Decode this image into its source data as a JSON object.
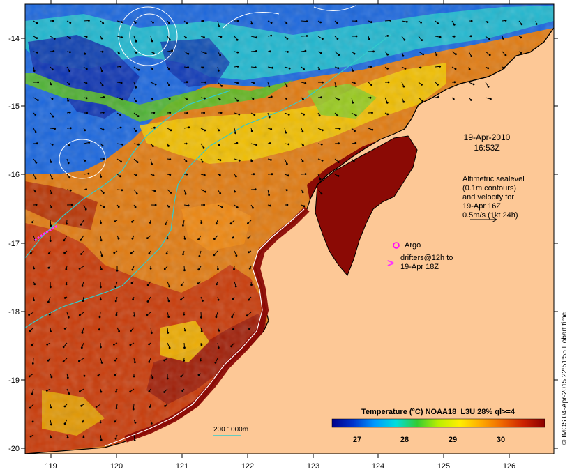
{
  "map": {
    "date_label": "19-Apr-2010",
    "time_label": "16:53Z",
    "altimetry_note": [
      "Altimetric sealevel",
      "(0.1m contours)",
      "and velocity for",
      "19-Apr 16Z",
      "0.5m/s (1kt 24h)"
    ],
    "argo_label": "Argo",
    "drifters_label": [
      "drifters@12h to",
      "19-Apr 18Z"
    ],
    "isobath_label": "200  1000m",
    "credit": "© IMOS 04-Apr-2015 22:51:55 Hobart time",
    "lat_ticks": [
      "-14",
      "-15",
      "-16",
      "-17",
      "-18",
      "-19",
      "-20"
    ],
    "lon_ticks": [
      "119",
      "120",
      "121",
      "122",
      "123",
      "124",
      "125",
      "126"
    ]
  },
  "colorbar": {
    "title": "Temperature (°C) NOAA18_L3U 28% ql>=4",
    "ticks": [
      "27",
      "28",
      "29",
      "30"
    ],
    "colors": [
      "#00008b",
      "#0033cc",
      "#0099ff",
      "#00dddd",
      "#33cc33",
      "#bbee00",
      "#ffee00",
      "#ffaa00",
      "#ee6600",
      "#cc2200",
      "#8b0000"
    ]
  },
  "style": {
    "land_color": "#fdc896",
    "argo_color": "#ff00ff",
    "drifter_color": "#ff33ff",
    "isobath_color": "#33cccc"
  }
}
